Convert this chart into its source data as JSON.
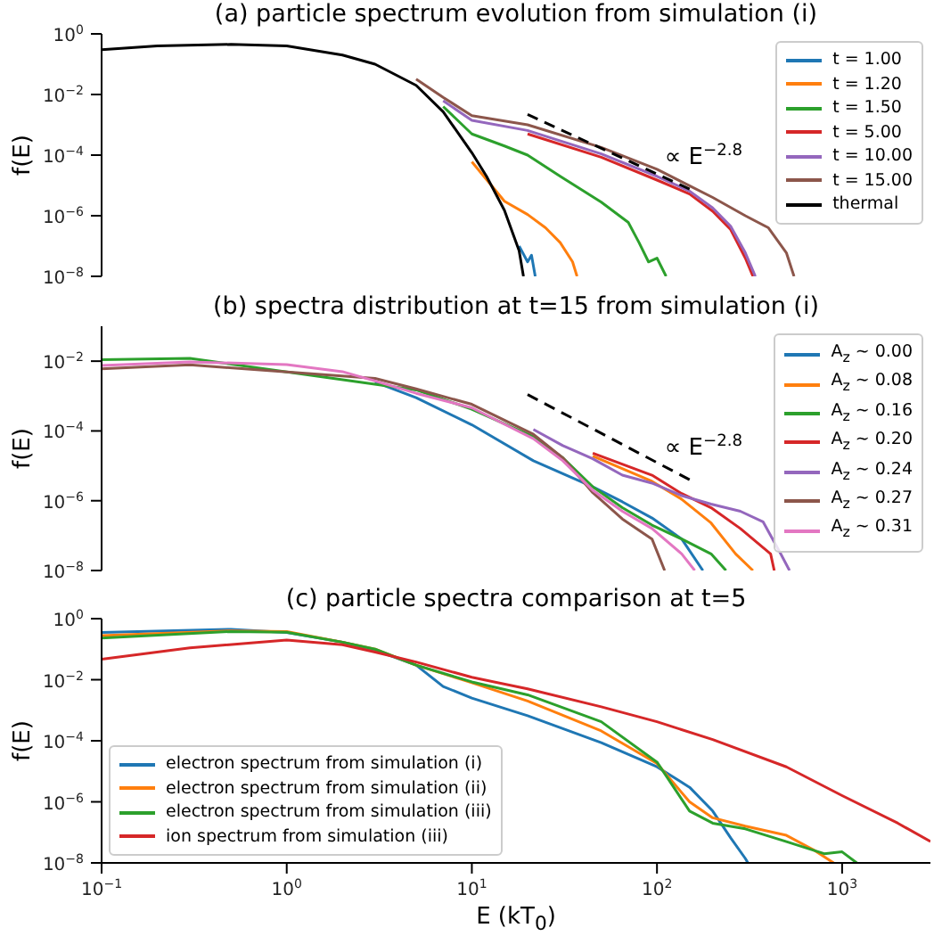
{
  "chart_data": [
    {
      "type": "line",
      "title": "(a) particle spectrum evolution from simulation (i)",
      "ylabel": "f(E)",
      "log": "xy",
      "xlim": [
        0.1,
        3000
      ],
      "ylim": [
        1e-08,
        1
      ],
      "xticks": [
        {
          "value": 0.1,
          "label": null
        },
        {
          "value": 1,
          "label": null
        },
        {
          "value": 10,
          "label": null
        },
        {
          "value": 100,
          "label": null
        },
        {
          "value": 1000,
          "label": null
        }
      ],
      "yticks": [
        {
          "value": 1e-08,
          "label": "10$^{−8}$"
        },
        {
          "value": 1e-06,
          "label": "10$^{−6}$"
        },
        {
          "value": 0.0001,
          "label": "10$^{−4}$"
        },
        {
          "value": 0.01,
          "label": "10$^{−2}$"
        },
        {
          "value": 1,
          "label": "10$^{0}$"
        }
      ],
      "tick_labels": "y",
      "legend": "top right",
      "series": [
        {
          "name": "t = 1.00",
          "color": "#1f77b4",
          "x": [
            18,
            20,
            21,
            22
          ],
          "values": [
            1e-07,
            3e-08,
            5e-08,
            1e-08
          ]
        },
        {
          "name": "t = 1.20",
          "color": "#ff7f0e",
          "x": [
            10,
            15,
            20,
            25,
            30,
            35,
            37
          ],
          "values": [
            6e-05,
            3e-06,
            1.1e-06,
            4e-07,
            1.3e-07,
            3e-08,
            1e-08
          ]
        },
        {
          "name": "t = 1.50",
          "color": "#2ca02c",
          "x": [
            7,
            10,
            15,
            20,
            30,
            50,
            70,
            80,
            90,
            100,
            112
          ],
          "values": [
            0.004,
            0.0005,
            0.0002,
            0.0001,
            2e-05,
            2.8e-06,
            6e-07,
            1.3e-07,
            3e-08,
            4e-08,
            1e-08
          ]
        },
        {
          "name": "t = 5.00",
          "color": "#d62728",
          "x": [
            20,
            50,
            100,
            150,
            200,
            250,
            300,
            330
          ],
          "values": [
            0.0005,
            8.5e-05,
            1.5e-05,
            5.2e-06,
            1.4e-06,
            3.5e-07,
            4e-08,
            1e-08
          ]
        },
        {
          "name": "t = 10.00",
          "color": "#9467bd",
          "x": [
            7,
            10,
            20,
            50,
            100,
            150,
            200,
            250,
            300,
            340
          ],
          "values": [
            0.0062,
            0.0014,
            0.00065,
            0.00011,
            2e-05,
            6.5e-06,
            1.8e-06,
            4.5e-07,
            6e-08,
            1e-08
          ]
        },
        {
          "name": "t = 15.00",
          "color": "#8c564b",
          "x": [
            5,
            7,
            10,
            20,
            50,
            100,
            200,
            300,
            400,
            500,
            550
          ],
          "values": [
            0.032,
            0.008,
            0.002,
            0.001,
            0.00018,
            3.4e-05,
            4e-06,
            1e-06,
            4e-07,
            6e-08,
            1e-08
          ]
        },
        {
          "name": "thermal",
          "color": "#000000",
          "x": [
            0.1,
            0.2,
            0.5,
            1,
            2,
            3,
            5,
            7,
            10,
            12,
            15,
            18,
            19
          ],
          "values": [
            0.3,
            0.4,
            0.45,
            0.4,
            0.2,
            0.1,
            0.02,
            0.0027,
            0.00012,
            2e-05,
            1.5e-06,
            7e-08,
            1e-08
          ]
        },
        {
          "type": "line",
          "name": "∝ E$^{−2.8}$",
          "color": "#000000",
          "line_style": "dashed",
          "x": [
            20,
            150
          ],
          "values": [
            0.0022,
            7.6e-06
          ]
        }
      ]
    },
    {
      "type": "line",
      "title": "(b) spectra distribution at t=15 from simulation (i)",
      "ylabel": "f(E)",
      "log": "xy",
      "xlim": [
        0.1,
        3000
      ],
      "ylim": [
        1e-08,
        0.1
      ],
      "xticks": [
        {
          "value": 0.1,
          "label": null
        },
        {
          "value": 1,
          "label": null
        },
        {
          "value": 10,
          "label": null
        },
        {
          "value": 100,
          "label": null
        },
        {
          "value": 1000,
          "label": null
        }
      ],
      "yticks": [
        {
          "value": 1e-08,
          "label": "10$^{−8}$"
        },
        {
          "value": 1e-06,
          "label": "10$^{−6}$"
        },
        {
          "value": 0.0001,
          "label": "10$^{−4}$"
        },
        {
          "value": 0.01,
          "label": "10$^{−2}$"
        }
      ],
      "tick_labels": "y",
      "legend": "top right",
      "series": [
        {
          "name": "A$_{z}$ ~ 0.00",
          "color": "#1f77b4",
          "x": [
            3,
            5,
            10,
            21.5,
            45,
            65,
            94,
            136,
            177
          ],
          "values": [
            0.0025,
            0.0009,
            0.00015,
            1.4e-05,
            2.5e-06,
            9.3e-07,
            3.2e-07,
            8e-08,
            1e-08
          ]
        },
        {
          "name": "A$_{z}$ ~ 0.08",
          "color": "#ff7f0e",
          "x": [
            45,
            94,
            136,
            196,
            266,
            330
          ],
          "values": [
            1.9e-05,
            3.6e-06,
            1.1e-06,
            2.3e-07,
            3e-08,
            1e-08
          ]
        },
        {
          "name": "A$_{z}$ ~ 0.16",
          "color": "#2ca02c",
          "x": [
            0.1,
            0.3,
            5,
            10,
            21.5,
            31,
            45,
            65,
            94,
            136,
            196,
            236
          ],
          "values": [
            0.011,
            0.012,
            0.0015,
            0.00042,
            6.8e-05,
            1.7e-05,
            2.5e-06,
            6.3e-07,
            2e-07,
            8e-08,
            3e-08,
            1e-08
          ]
        },
        {
          "name": "A$_{z}$ ~ 0.20",
          "color": "#d62728",
          "x": [
            45,
            94,
            136,
            196,
            282,
            411,
            430
          ],
          "values": [
            2.3e-05,
            5.4e-06,
            1.6e-06,
            6.3e-07,
            1.6e-07,
            3e-08,
            1e-08
          ]
        },
        {
          "name": "A$_{z}$ ~ 0.24",
          "color": "#9467bd",
          "x": [
            21.5,
            31,
            45,
            65,
            94,
            136,
            196,
            282,
            374,
            466,
            520
          ],
          "values": [
            0.00011,
            3.8e-05,
            1.6e-05,
            5.4e-06,
            3.2e-06,
            1.4e-06,
            8e-07,
            5e-07,
            2.5e-07,
            3e-08,
            1e-08
          ]
        },
        {
          "name": "A$_{z}$ ~ 0.27",
          "color": "#8c564b",
          "x": [
            0.1,
            0.3,
            3,
            5,
            10,
            21.5,
            31,
            45,
            65,
            94,
            110
          ],
          "values": [
            0.006,
            0.0078,
            0.0032,
            0.0016,
            0.00058,
            8e-05,
            1.7e-05,
            1.7e-06,
            3e-07,
            8e-08,
            1e-08
          ]
        },
        {
          "name": "A$_{z}$ ~ 0.31",
          "color": "#e377c2",
          "x": [
            0.1,
            0.3,
            1,
            2,
            3,
            5,
            10,
            21.5,
            31,
            45,
            65,
            94,
            136,
            160
          ],
          "values": [
            0.0075,
            0.0095,
            0.008,
            0.005,
            0.0027,
            0.0012,
            0.00046,
            6e-05,
            1.4e-05,
            2e-06,
            5e-07,
            1.6e-07,
            3e-08,
            1e-08
          ]
        },
        {
          "type": "line",
          "name": "∝ E$^{−2.8}$",
          "color": "#000000",
          "line_style": "dashed",
          "x": [
            20,
            150
          ],
          "values": [
            0.0011,
            4e-06
          ]
        }
      ]
    },
    {
      "type": "line",
      "title": "(c) particle spectra comparison at t=5",
      "xlabel": "E (kT$_{0}$)",
      "ylabel": "f(E)",
      "log": "xy",
      "xlim": [
        0.1,
        3000
      ],
      "ylim": [
        1e-08,
        1
      ],
      "xticks": [
        {
          "value": 0.1,
          "label": "10$^{−1}$"
        },
        {
          "value": 1,
          "label": "10$^{0}$"
        },
        {
          "value": 10,
          "label": "10$^{1}$"
        },
        {
          "value": 100,
          "label": "10$^{2}$"
        },
        {
          "value": 1000,
          "label": "10$^{3}$"
        }
      ],
      "yticks": [
        {
          "value": 1e-08,
          "label": "10$^{−8}$"
        },
        {
          "value": 1e-06,
          "label": "10$^{−6}$"
        },
        {
          "value": 0.0001,
          "label": "10$^{−4}$"
        },
        {
          "value": 0.01,
          "label": "10$^{−2}$"
        },
        {
          "value": 1,
          "label": "10$^{0}$"
        }
      ],
      "legend": "bottom left",
      "series": [
        {
          "name": "electron spectrum from simulation (i)",
          "color": "#1f77b4",
          "x": [
            0.1,
            0.5,
            1,
            2,
            3,
            5,
            7,
            10,
            20,
            50,
            100,
            150,
            200,
            250,
            300,
            310
          ],
          "values": [
            0.35,
            0.45,
            0.35,
            0.17,
            0.093,
            0.03,
            0.006,
            0.0025,
            0.00066,
            8.7e-05,
            1.4e-05,
            3e-06,
            5e-07,
            6.6e-08,
            1.4e-08,
            1e-08
          ]
        },
        {
          "name": "electron spectrum from simulation (ii)",
          "color": "#ff7f0e",
          "x": [
            0.1,
            0.5,
            1,
            2,
            3,
            5,
            10,
            20,
            50,
            100,
            150,
            200,
            300,
            500,
            700,
            900
          ],
          "values": [
            0.28,
            0.4,
            0.38,
            0.17,
            0.1,
            0.03,
            0.008,
            0.002,
            0.00021,
            1.8e-05,
            1e-06,
            3e-07,
            1.6e-07,
            8e-08,
            2.7e-08,
            1e-08
          ]
        },
        {
          "name": "electron spectrum from simulation (iii)",
          "color": "#2ca02c",
          "x": [
            0.1,
            0.5,
            1,
            2,
            3,
            5,
            10,
            20,
            50,
            100,
            150,
            200,
            300,
            500,
            800,
            1000,
            1200
          ],
          "values": [
            0.23,
            0.38,
            0.36,
            0.17,
            0.1,
            0.03,
            0.0085,
            0.0032,
            0.00042,
            2e-05,
            5e-07,
            2e-07,
            1.3e-07,
            5e-08,
            2e-08,
            2.3e-08,
            1e-08
          ]
        },
        {
          "name": "ion spectrum from simulation (iii)",
          "color": "#d62728",
          "x": [
            0.1,
            0.3,
            1,
            2,
            3,
            5,
            10,
            20,
            50,
            100,
            200,
            500,
            1000,
            2000,
            3000
          ],
          "values": [
            0.047,
            0.11,
            0.2,
            0.14,
            0.08,
            0.038,
            0.012,
            0.005,
            0.0013,
            0.00042,
            0.00011,
            1.4e-05,
            1.6e-06,
            2e-07,
            5e-08
          ]
        }
      ]
    }
  ]
}
